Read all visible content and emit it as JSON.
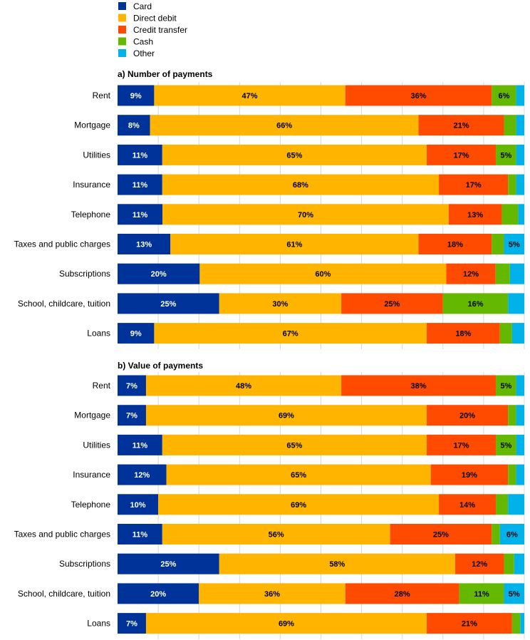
{
  "chart_data": {
    "type": "bar",
    "orientation": "horizontal",
    "stacked": "percent",
    "legend": {
      "position": "top-left",
      "entries": [
        {
          "name": "Card",
          "color": "#003399"
        },
        {
          "name": "Direct debit",
          "color": "#FFB400"
        },
        {
          "name": "Credit transfer",
          "color": "#FF4B00"
        },
        {
          "name": "Cash",
          "color": "#65B800"
        },
        {
          "name": "Other",
          "color": "#00B1EA"
        }
      ]
    },
    "xlim": [
      0,
      100
    ],
    "grid": true,
    "panels": [
      {
        "title": "a) Number of payments",
        "categories": [
          "Rent",
          "Mortgage",
          "Utilities",
          "Insurance",
          "Telephone",
          "Taxes and public charges",
          "Subscriptions",
          "School, childcare, tuition",
          "Loans"
        ],
        "series": [
          {
            "name": "Card",
            "values": [
              9,
              8,
              11,
              11,
              11,
              13,
              20,
              25,
              9
            ]
          },
          {
            "name": "Direct debit",
            "values": [
              47,
              66,
              65,
              68,
              70,
              61,
              60,
              30,
              67
            ]
          },
          {
            "name": "Credit transfer",
            "values": [
              36,
              21,
              17,
              17,
              13,
              18,
              12,
              25,
              18
            ]
          },
          {
            "name": "Cash",
            "values": [
              6,
              3,
              5,
              2,
              4,
              3,
              3.5,
              16,
              3
            ]
          },
          {
            "name": "Other",
            "values": [
              2,
              2,
              2,
              2,
              1.5,
              5,
              3.5,
              4,
              3
            ]
          }
        ],
        "data_labels": [
          [
            "9%",
            "47%",
            "36%",
            "6%",
            ""
          ],
          [
            "8%",
            "66%",
            "21%",
            "",
            ""
          ],
          [
            "11%",
            "65%",
            "17%",
            "5%",
            ""
          ],
          [
            "11%",
            "68%",
            "17%",
            "",
            ""
          ],
          [
            "11%",
            "70%",
            "13%",
            "",
            ""
          ],
          [
            "13%",
            "61%",
            "18%",
            "",
            "5%"
          ],
          [
            "20%",
            "60%",
            "12%",
            "",
            ""
          ],
          [
            "25%",
            "30%",
            "25%",
            "16%",
            ""
          ],
          [
            "9%",
            "67%",
            "18%",
            "",
            ""
          ]
        ]
      },
      {
        "title": "b) Value of payments",
        "categories": [
          "Rent",
          "Mortgage",
          "Utilities",
          "Insurance",
          "Telephone",
          "Taxes and public charges",
          "Subscriptions",
          "School, childcare, tuition",
          "Loans"
        ],
        "series": [
          {
            "name": "Card",
            "values": [
              7,
              7,
              11,
              12,
              10,
              11,
              25,
              20,
              7
            ]
          },
          {
            "name": "Direct debit",
            "values": [
              48,
              69,
              65,
              65,
              69,
              56,
              58,
              36,
              69
            ]
          },
          {
            "name": "Credit transfer",
            "values": [
              38,
              20,
              17,
              19,
              14,
              25,
              12,
              28,
              21
            ]
          },
          {
            "name": "Cash",
            "values": [
              5,
              2,
              5,
              2,
              3,
              2,
              2.5,
              11,
              2
            ]
          },
          {
            "name": "Other",
            "values": [
              2,
              2,
              2,
              2,
              4,
              6,
              2.5,
              5,
              1
            ]
          }
        ],
        "data_labels": [
          [
            "7%",
            "48%",
            "38%",
            "5%",
            ""
          ],
          [
            "7%",
            "69%",
            "20%",
            "",
            ""
          ],
          [
            "11%",
            "65%",
            "17%",
            "5%",
            ""
          ],
          [
            "12%",
            "65%",
            "19%",
            "",
            ""
          ],
          [
            "10%",
            "69%",
            "14%",
            "",
            ""
          ],
          [
            "11%",
            "56%",
            "25%",
            "",
            "6%"
          ],
          [
            "25%",
            "58%",
            "12%",
            "",
            ""
          ],
          [
            "20%",
            "36%",
            "28%",
            "11%",
            "5%"
          ],
          [
            "7%",
            "69%",
            "21%",
            "",
            ""
          ]
        ]
      }
    ]
  }
}
